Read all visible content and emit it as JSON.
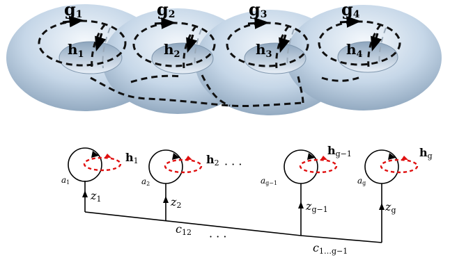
{
  "torus": {
    "generators": [
      {
        "g_base": "g",
        "g_sub": "1",
        "h_base": "h",
        "h_sub": "1"
      },
      {
        "g_base": "g",
        "g_sub": "2",
        "h_base": "h",
        "h_sub": "2"
      },
      {
        "g_base": "g",
        "g_sub": "3",
        "h_base": "h",
        "h_sub": "3"
      },
      {
        "g_base": "g",
        "g_sub": "4",
        "h_base": "h",
        "h_sub": "4"
      }
    ]
  },
  "graph": {
    "loops": [
      {
        "a_base": "a",
        "a_sub": "1",
        "h_base": "h",
        "h_sub": "1",
        "z_base": "z",
        "z_sub": "1"
      },
      {
        "a_base": "a",
        "a_sub": "2",
        "h_base": "h",
        "h_sub": "2",
        "z_base": "z",
        "z_sub": "2"
      },
      {
        "a_base": "a",
        "a_sub": "g−1",
        "h_base": "h",
        "h_sub": "g−1",
        "z_base": "z",
        "z_sub": "g−1"
      },
      {
        "a_base": "a",
        "a_sub": "g",
        "h_base": "h",
        "h_sub": "g",
        "z_base": "z",
        "z_sub": "g"
      }
    ],
    "ellipsis_top": "· · ·",
    "ellipsis_bottom": "· · ·",
    "c12": {
      "base": "c",
      "sub": "12"
    },
    "cg": {
      "base": "c",
      "sub": "1…g−1"
    }
  },
  "colors": {
    "surface_light": "#eef4fb",
    "surface_mid": "#b8cde2",
    "surface_dark": "#7d95ad",
    "dashed_curve": "#111111",
    "red_loop": "#e01010",
    "line": "#000000"
  }
}
